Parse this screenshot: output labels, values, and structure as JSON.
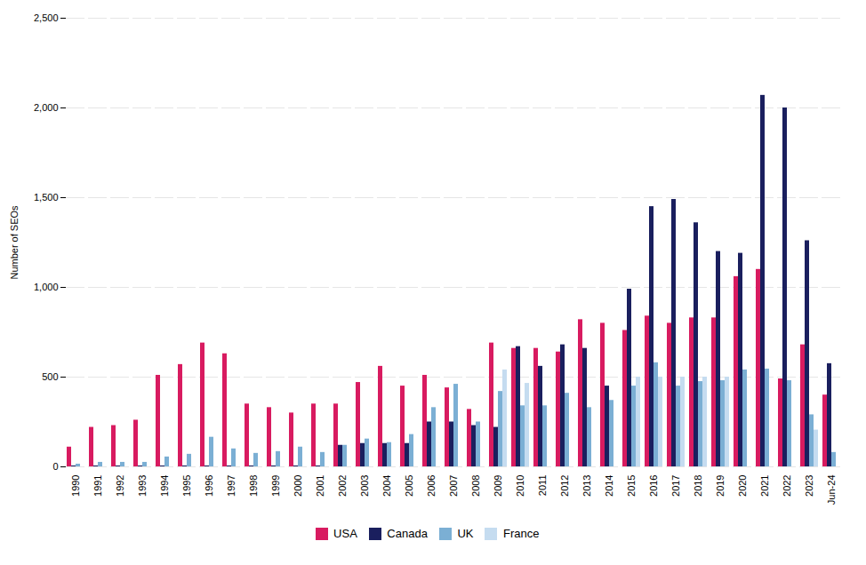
{
  "chart_data": {
    "type": "bar",
    "categories": [
      "1990",
      "1991",
      "1992",
      "1993",
      "1994",
      "1995",
      "1996",
      "1997",
      "1998",
      "1999",
      "2000",
      "2001",
      "2002",
      "2003",
      "2004",
      "2005",
      "2006",
      "2007",
      "2008",
      "2009",
      "2010",
      "2011",
      "2012",
      "2013",
      "2014",
      "2015",
      "2016",
      "2017",
      "2018",
      "2019",
      "2020",
      "2021",
      "2022",
      "2023",
      "Jun-24"
    ],
    "series": [
      {
        "name": "USA",
        "color": "#D81B60",
        "values": [
          110,
          220,
          230,
          260,
          510,
          570,
          690,
          630,
          350,
          330,
          300,
          350,
          350,
          470,
          560,
          450,
          510,
          440,
          320,
          690,
          660,
          660,
          640,
          820,
          800,
          760,
          840,
          800,
          830,
          830,
          1060,
          1100,
          490,
          680,
          400
        ]
      },
      {
        "name": "Canada",
        "color": "#1A1F5E",
        "values": [
          5,
          5,
          5,
          5,
          5,
          5,
          5,
          5,
          5,
          5,
          5,
          5,
          120,
          130,
          130,
          130,
          250,
          250,
          230,
          220,
          670,
          560,
          680,
          660,
          450,
          990,
          1450,
          1490,
          1360,
          1200,
          1190,
          2070,
          2000,
          1260,
          575
        ]
      },
      {
        "name": "UK",
        "color": "#7BAFD4",
        "values": [
          15,
          25,
          25,
          25,
          55,
          70,
          165,
          100,
          75,
          85,
          110,
          80,
          120,
          155,
          135,
          180,
          330,
          460,
          250,
          420,
          340,
          340,
          410,
          330,
          370,
          450,
          580,
          450,
          475,
          480,
          540,
          545,
          480,
          290,
          80
        ]
      },
      {
        "name": "France",
        "color": "#C5DCF0",
        "values": [
          0,
          0,
          0,
          0,
          0,
          0,
          0,
          0,
          0,
          0,
          0,
          0,
          0,
          0,
          0,
          0,
          0,
          0,
          0,
          540,
          465,
          0,
          0,
          0,
          0,
          500,
          500,
          500,
          500,
          500,
          0,
          0,
          0,
          205,
          0
        ]
      }
    ],
    "ylabel": "Number of SEOs",
    "ylim": [
      0,
      2500
    ],
    "yticks": [
      0,
      500,
      1000,
      1500,
      2000,
      2500
    ],
    "grid": true,
    "legend": "bottom"
  }
}
